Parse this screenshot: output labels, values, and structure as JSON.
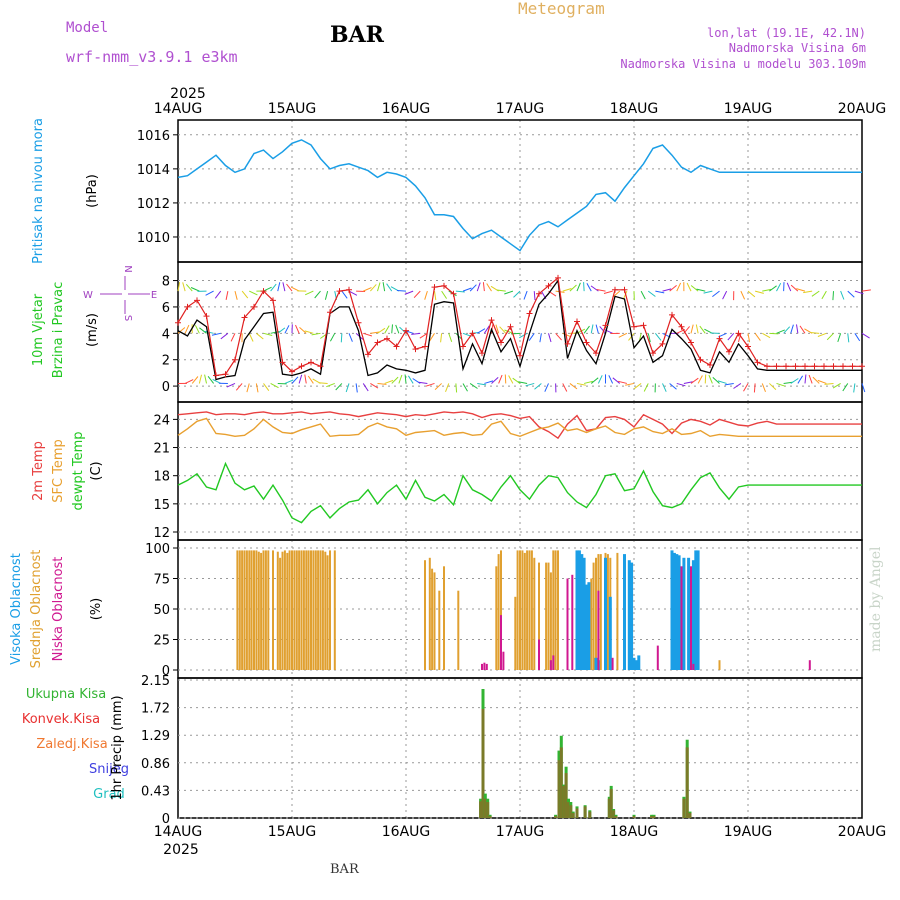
{
  "header": {
    "model_label": "Model",
    "model_name": "wrf-nmm_v3.9.1 e3km",
    "station": "BAR",
    "meteogram": "Meteogram",
    "location": "lon,lat (19.1E, 42.1N)",
    "elevation": "Nadmorska Visina 6m",
    "model_elevation": "Nadmorska Visina u modelu 303.109m",
    "credit": "made by Angel",
    "footer_station": "BAR"
  },
  "colors": {
    "pressure": "#1a9ee6",
    "wind_speed": "#000000",
    "wind_gust": "#e02020",
    "t2m": "#e84040",
    "sfc": "#e8a030",
    "dewp": "#22c822",
    "cloud_high": "#1a9ee6",
    "cloud_mid": "#e0a030",
    "cloud_low": "#d01890",
    "precip_total": "#32b432",
    "precip_conv": "#e83030",
    "precip_frozen": "#f07830",
    "precip_snow": "#4040e0",
    "precip_grau": "#20c0c0"
  },
  "chart_data": [
    {
      "type": "line",
      "name": "sea-level-pressure",
      "x_ticks": [
        "14AUG",
        "15AUG",
        "16AUG",
        "17AUG",
        "18AUG",
        "19AUG",
        "20AUG"
      ],
      "year": "2025",
      "x_range_hours": [
        0,
        144
      ],
      "ylabel_main": "Pritisak na nivou mora",
      "ylabel_unit": "(hPa)",
      "ylim": [
        1009,
        1016.4
      ],
      "y_ticks": [
        "1010",
        "1012",
        "1014",
        "1016"
      ],
      "hours": [
        0,
        2,
        4,
        6,
        8,
        10,
        12,
        14,
        16,
        18,
        20,
        22,
        24,
        26,
        28,
        30,
        32,
        34,
        36,
        38,
        40,
        42,
        44,
        46,
        48,
        50,
        52,
        54,
        56,
        58,
        60,
        62,
        64,
        66,
        68,
        70,
        72,
        74,
        76,
        78,
        80,
        82,
        84,
        86,
        88,
        90,
        92,
        94,
        96,
        98,
        100,
        102,
        104,
        106,
        108,
        110,
        112,
        114,
        116,
        118,
        120,
        122,
        124,
        126,
        128,
        130,
        132,
        134,
        136,
        138,
        140,
        142,
        144
      ],
      "values": [
        1013.5,
        1013.6,
        1014.0,
        1014.4,
        1014.8,
        1014.2,
        1013.8,
        1014.0,
        1014.9,
        1015.1,
        1014.6,
        1015.0,
        1015.5,
        1015.7,
        1015.4,
        1014.6,
        1014.0,
        1014.2,
        1014.3,
        1014.1,
        1013.9,
        1013.5,
        1013.8,
        1013.7,
        1013.5,
        1013.0,
        1012.3,
        1011.3,
        1011.3,
        1011.2,
        1010.5,
        1009.9,
        1010.2,
        1010.4,
        1010.0,
        1009.6,
        1009.2,
        1010.1,
        1010.7,
        1010.9,
        1010.6,
        1011.0,
        1011.4,
        1011.8,
        1012.5,
        1012.6,
        1012.1,
        1012.9,
        1013.6,
        1014.3,
        1015.2,
        1015.4,
        1014.8,
        1014.1,
        1013.8,
        1014.2,
        1014.0,
        1013.8,
        1013.8,
        1013.8,
        1013.8,
        1013.8,
        1013.8,
        1013.8,
        1013.8,
        1013.8,
        1013.8,
        1013.8,
        1013.8,
        1013.8,
        1013.8,
        1013.8,
        1013.8
      ]
    },
    {
      "type": "line",
      "name": "wind",
      "ylabel_main": "10m Vjetar",
      "ylabel_sub": "Brzina i Pravac",
      "ylabel_unit": "(m/s)",
      "compass": "N",
      "compass_w": "W",
      "compass_e": "E",
      "compass_s": "S",
      "ylim": [
        -0.6,
        8.8
      ],
      "y_ticks": [
        "0",
        "2",
        "4",
        "6",
        "8"
      ],
      "hours": [
        0,
        2,
        4,
        6,
        8,
        10,
        12,
        14,
        16,
        18,
        20,
        22,
        24,
        26,
        28,
        30,
        32,
        34,
        36,
        38,
        40,
        42,
        44,
        46,
        48,
        50,
        52,
        54,
        56,
        58,
        60,
        62,
        64,
        66,
        68,
        70,
        72,
        74,
        76,
        78,
        80,
        82,
        84,
        86,
        88,
        90,
        92,
        94,
        96,
        98,
        100,
        102,
        104,
        106,
        108,
        110,
        112,
        114,
        116,
        118,
        120,
        122,
        124,
        126,
        128,
        130,
        132,
        134,
        136,
        138,
        140,
        142,
        144
      ],
      "speed": [
        4.2,
        3.8,
        5.0,
        4.5,
        0.5,
        0.7,
        0.8,
        3.5,
        4.5,
        5.5,
        5.6,
        0.9,
        0.8,
        1.0,
        1.3,
        0.9,
        5.5,
        6.0,
        6.0,
        4.2,
        0.8,
        1.0,
        1.6,
        1.3,
        1.2,
        1.0,
        1.2,
        6.2,
        6.4,
        6.3,
        1.3,
        3.2,
        1.7,
        4.3,
        2.6,
        3.6,
        1.5,
        4.0,
        6.2,
        7.0,
        8.0,
        2.1,
        4.2,
        2.7,
        1.7,
        4.0,
        6.8,
        6.6,
        2.9,
        3.8,
        1.8,
        2.3,
        4.3,
        3.6,
        2.8,
        1.2,
        1.0,
        2.6,
        1.8,
        3.2,
        2.3,
        1.3,
        1.2,
        1.2,
        1.2,
        1.2,
        1.2,
        1.2,
        1.2,
        1.2,
        1.2,
        1.2,
        1.2
      ],
      "gust": [
        4.8,
        6.0,
        6.5,
        5.3,
        0.8,
        0.9,
        2.0,
        5.2,
        6.0,
        7.2,
        6.5,
        1.8,
        1.1,
        1.5,
        1.8,
        1.5,
        5.6,
        7.2,
        7.3,
        4.8,
        2.4,
        3.3,
        3.6,
        3.0,
        4.2,
        2.8,
        3.0,
        7.5,
        7.6,
        7.0,
        3.0,
        4.0,
        2.5,
        5.0,
        3.3,
        4.5,
        2.3,
        5.5,
        7.0,
        7.6,
        8.2,
        3.2,
        4.9,
        3.3,
        2.5,
        4.6,
        7.3,
        7.3,
        4.5,
        4.6,
        2.5,
        3.2,
        5.4,
        4.5,
        3.3,
        2.0,
        1.6,
        3.6,
        2.6,
        4.0,
        3.0,
        1.8,
        1.5,
        1.5,
        1.5,
        1.5,
        1.5,
        1.5,
        1.5,
        1.5,
        1.5,
        1.5,
        1.5
      ]
    },
    {
      "type": "line",
      "name": "temperature",
      "ylabel_t2m": "2m Temp",
      "ylabel_sfc": "SFC Temp",
      "ylabel_dewp": "dewpt Temp",
      "ylabel_unit": "(C)",
      "ylim": [
        12,
        25
      ],
      "y_ticks": [
        "12",
        "15",
        "18",
        "21",
        "24"
      ],
      "hours": [
        0,
        2,
        4,
        6,
        8,
        10,
        12,
        14,
        16,
        18,
        20,
        22,
        24,
        26,
        28,
        30,
        32,
        34,
        36,
        38,
        40,
        42,
        44,
        46,
        48,
        50,
        52,
        54,
        56,
        58,
        60,
        62,
        64,
        66,
        68,
        70,
        72,
        74,
        76,
        78,
        80,
        82,
        84,
        86,
        88,
        90,
        92,
        94,
        96,
        98,
        100,
        102,
        104,
        106,
        108,
        110,
        112,
        114,
        116,
        118,
        120,
        122,
        124,
        126,
        128,
        130,
        132,
        134,
        136,
        138,
        140,
        142,
        144
      ],
      "t2m": [
        24.5,
        24.6,
        24.7,
        24.8,
        24.5,
        24.6,
        24.6,
        24.5,
        24.7,
        24.8,
        24.6,
        24.6,
        24.7,
        24.8,
        24.6,
        24.7,
        24.8,
        24.6,
        24.5,
        24.3,
        24.5,
        24.7,
        24.6,
        24.5,
        24.3,
        24.5,
        24.4,
        24.6,
        24.8,
        24.7,
        24.8,
        24.6,
        24.2,
        24.5,
        24.6,
        24.4,
        24.1,
        24.3,
        23.2,
        22.7,
        22.0,
        23.5,
        24.4,
        22.8,
        23.0,
        24.2,
        24.3,
        24.0,
        23.2,
        24.5,
        24.0,
        23.5,
        22.5,
        23.6,
        24.0,
        23.8,
        23.4,
        24.0,
        23.7,
        23.4,
        23.3,
        23.6,
        23.8,
        23.5,
        23.5,
        23.5,
        23.5,
        23.5,
        23.5,
        23.5,
        23.5,
        23.5,
        23.5
      ],
      "sfc": [
        22.3,
        23.0,
        23.8,
        24.1,
        22.5,
        22.4,
        22.2,
        22.3,
        23.0,
        24.0,
        23.2,
        22.6,
        22.5,
        22.9,
        23.2,
        23.5,
        22.2,
        22.3,
        22.3,
        22.4,
        23.2,
        23.6,
        23.2,
        23.0,
        22.3,
        22.6,
        22.7,
        22.8,
        22.3,
        22.5,
        22.6,
        22.3,
        22.4,
        23.5,
        23.8,
        22.5,
        22.2,
        22.6,
        23.0,
        23.2,
        23.6,
        22.8,
        23.0,
        22.6,
        23.0,
        23.3,
        22.6,
        22.4,
        23.0,
        23.2,
        22.7,
        22.5,
        23.0,
        22.4,
        22.5,
        22.8,
        22.2,
        22.4,
        22.3,
        22.2,
        22.2,
        22.2,
        22.2,
        22.2,
        22.2,
        22.2,
        22.2,
        22.2,
        22.2,
        22.2,
        22.2,
        22.2,
        22.2
      ],
      "dewp": [
        17.0,
        17.5,
        18.2,
        16.8,
        16.5,
        19.3,
        17.2,
        16.5,
        16.9,
        15.5,
        17.0,
        15.4,
        13.5,
        13.0,
        14.2,
        14.8,
        13.5,
        14.5,
        15.2,
        15.4,
        16.5,
        15.0,
        16.2,
        17.0,
        15.5,
        17.5,
        15.7,
        15.3,
        16.0,
        14.9,
        18.0,
        16.5,
        16.0,
        15.3,
        16.8,
        18.0,
        16.5,
        15.5,
        17.0,
        18.0,
        17.8,
        16.2,
        15.2,
        14.6,
        16.0,
        18.0,
        18.2,
        16.4,
        16.6,
        18.5,
        16.3,
        14.8,
        14.6,
        15.0,
        16.5,
        17.8,
        18.3,
        16.7,
        15.5,
        16.8,
        17.0,
        17.0,
        17.0,
        17.0,
        17.0,
        17.0,
        17.0,
        17.0,
        17.0,
        17.0,
        17.0,
        17.0,
        17.0
      ]
    },
    {
      "type": "bar",
      "name": "cloud-cover",
      "ylabel_high": "Visoka Oblacnost",
      "ylabel_mid": "Srednja Oblacnost",
      "ylabel_low": "Niska Oblacnost",
      "ylabel_unit": "(%)",
      "ylim": [
        0,
        100
      ],
      "y_ticks": [
        "0",
        "25",
        "50",
        "75",
        "100"
      ],
      "mid_hours": [
        12.5,
        13,
        13.5,
        14,
        14.5,
        15,
        15.5,
        16,
        16.5,
        17,
        17.5,
        18,
        18.5,
        19,
        20,
        21,
        21.5,
        22,
        22.5,
        23,
        23.5,
        24,
        24.5,
        25,
        25.5,
        26,
        26.5,
        27,
        27.5,
        28,
        28.5,
        29,
        29.5,
        30,
        30.5,
        31,
        31.5,
        32,
        33,
        52,
        53,
        53.5,
        54,
        55,
        56,
        59,
        67,
        67.5,
        68,
        71,
        71.5,
        72,
        72.5,
        73,
        73.5,
        74,
        74.5,
        75,
        76,
        77.5,
        78,
        78.5,
        79,
        79.5,
        80,
        86,
        86.5,
        87,
        87.5,
        88,
        88.5,
        89,
        90,
        90.5,
        91,
        92.5,
        109,
        114
      ],
      "mid_values": [
        98,
        98,
        98,
        98,
        98,
        98,
        98,
        98,
        98,
        97,
        96,
        98,
        98,
        98,
        98,
        97,
        92,
        97,
        98,
        96,
        98,
        98,
        98,
        98,
        98,
        98,
        98,
        98,
        98,
        98,
        98,
        98,
        98,
        98,
        98,
        97,
        94,
        98,
        98,
        90,
        92,
        83,
        80,
        65,
        85,
        65,
        85,
        95,
        98,
        60,
        98,
        98,
        98,
        96,
        98,
        98,
        98,
        92,
        88,
        88,
        88,
        80,
        98,
        98,
        98,
        60,
        65,
        75,
        88,
        92,
        95,
        95,
        96,
        95,
        92,
        96,
        4,
        8
      ],
      "high_hours": [
        84,
        84.5,
        85,
        85.5,
        86,
        86.5,
        88,
        88.5,
        90,
        91,
        94,
        95,
        95.5,
        96,
        96.5,
        97,
        104,
        104.5,
        105,
        105.5,
        106.5,
        107.5,
        108.5,
        109,
        109.5
      ],
      "high_values": [
        98,
        98,
        95,
        92,
        70,
        72,
        10,
        8,
        92,
        60,
        95,
        90,
        88,
        10,
        8,
        12,
        98,
        96,
        95,
        94,
        92,
        92,
        90,
        98,
        98
      ],
      "low_hours": [
        64,
        64.5,
        65,
        68,
        68.5,
        76,
        78.5,
        79,
        82,
        83,
        88.5,
        91.5,
        101,
        106,
        108,
        108.5,
        133
      ],
      "low_values": [
        5,
        6,
        5,
        45,
        15,
        25,
        8,
        12,
        75,
        78,
        65,
        10,
        20,
        85,
        85,
        5,
        8
      ]
    },
    {
      "type": "bar",
      "name": "precipitation",
      "legend": [
        "Ukupna Kisa",
        "Konvek.Kisa",
        "Zaledj.Kisa",
        "Snijeg",
        "Grad"
      ],
      "ylabel": "1hr Precip (mm)",
      "ylim": [
        0,
        2.15
      ],
      "y_ticks": [
        "0",
        "0.43",
        "0.86",
        "1.29",
        "1.72",
        "2.15"
      ],
      "hours": [
        63.7,
        64.2,
        64.7,
        65.2,
        65.7,
        79.5,
        80.2,
        80.7,
        81.2,
        81.7,
        82.2,
        82.7,
        83.2,
        84.0,
        85.7,
        86.7,
        90.8,
        91.2,
        91.7,
        92.2,
        96.0,
        99.7,
        100.2,
        106.5,
        107.2,
        107.8
      ],
      "total": [
        0.3,
        2.01,
        0.38,
        0.3,
        0.05,
        0.05,
        1.05,
        1.28,
        0.52,
        0.8,
        0.3,
        0.25,
        0.1,
        0.18,
        0.2,
        0.12,
        0.33,
        0.5,
        0.14,
        0.05,
        0.05,
        0.05,
        0.05,
        0.33,
        1.22,
        0.1
      ],
      "conv": [
        0.26,
        1.7,
        0.3,
        0.25,
        0.03,
        0.03,
        0.9,
        1.1,
        0.5,
        0.7,
        0.25,
        0.2,
        0.08,
        0.15,
        0.18,
        0.1,
        0.3,
        0.45,
        0.12,
        0.03,
        0.03,
        0.03,
        0.03,
        0.3,
        1.1,
        0.08
      ]
    }
  ],
  "x_axis": {
    "top_year": "2025",
    "bottom_year": "2025"
  }
}
